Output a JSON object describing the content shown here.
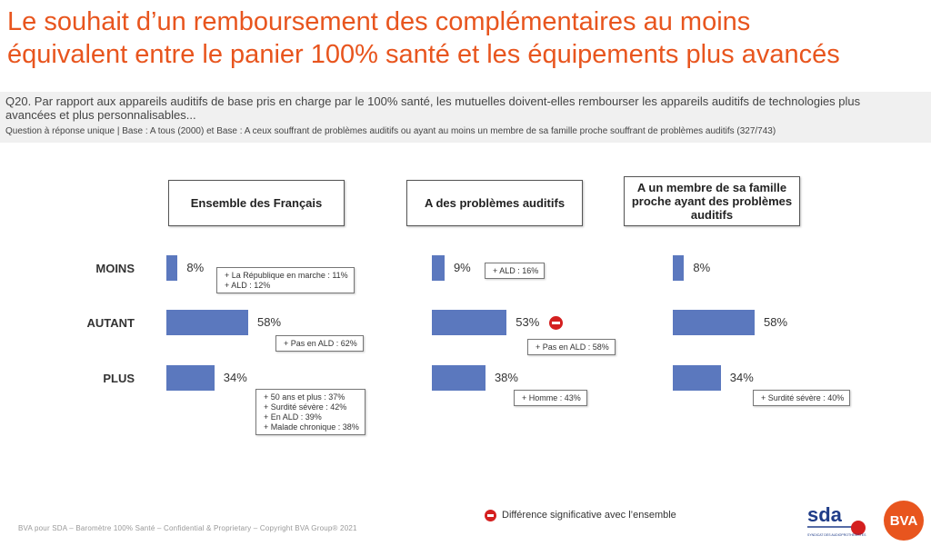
{
  "title": {
    "line1": "Le souhait d’un remboursement des complémentaires au moins",
    "line2": "équivalent entre le panier 100% santé et les équipements plus avancés"
  },
  "question": {
    "text": "Q20. Par rapport aux appareils auditifs de base pris en charge par le 100% santé, les mutuelles doivent-elles rembourser les appareils auditifs de technologies plus avancées et plus personnalisables...",
    "base": "Question à réponse unique | Base : A tous (2000) et Base : A ceux souffrant de problèmes auditifs ou ayant au moins un membre de sa famille proche souffrant de problèmes auditifs (327/743)"
  },
  "chart_data": {
    "type": "bar",
    "categories": [
      "MOINS",
      "AUTANT",
      "PLUS"
    ],
    "groups": [
      {
        "label": "Ensemble des Français",
        "values": [
          8,
          58,
          34
        ],
        "value_labels": [
          "8%",
          "58%",
          "34%"
        ],
        "notes": [
          [
            "+ La République en marche : 11%",
            "+ ALD : 12%"
          ],
          [
            "+ Pas en ALD : 62%"
          ],
          [
            "+ 50 ans et plus : 37%",
            "+ Surdité sévère : 42%",
            "+ En ALD : 39%",
            "+ Malade chronique : 38%"
          ]
        ],
        "significant": [
          false,
          false,
          false
        ]
      },
      {
        "label": "A des problèmes auditifs",
        "values": [
          9,
          53,
          38
        ],
        "value_labels": [
          "9%",
          "53%",
          "38%"
        ],
        "notes": [
          [
            "+ ALD : 16%"
          ],
          [
            "+ Pas en ALD : 58%"
          ],
          [
            "+ Homme : 43%"
          ]
        ],
        "significant": [
          false,
          true,
          false
        ]
      },
      {
        "label": "A un membre de sa famille proche ayant des problèmes auditifs",
        "values": [
          8,
          58,
          34
        ],
        "value_labels": [
          "8%",
          "58%",
          "34%"
        ],
        "notes": [
          [],
          [],
          [
            "+ Surdité sévère : 40%"
          ]
        ],
        "significant": [
          false,
          false,
          false
        ]
      }
    ],
    "bar_color": "#5b78be",
    "orientation": "horizontal"
  },
  "legend": {
    "significance_label": "Différence significative avec l’ensemble",
    "significance_color": "#d41f1f"
  },
  "footer": "BVA pour SDA – Baromètre 100% Santé – Confidential & Proprietary – Copyright BVA Group® 2021",
  "logos": {
    "sda": "sda",
    "sda_sub": "SYNDICAT DES AUDIOPROTHÉSISTES",
    "bva": "BVA"
  },
  "colors": {
    "title": "#e8551e",
    "accent": "#e8551e"
  }
}
